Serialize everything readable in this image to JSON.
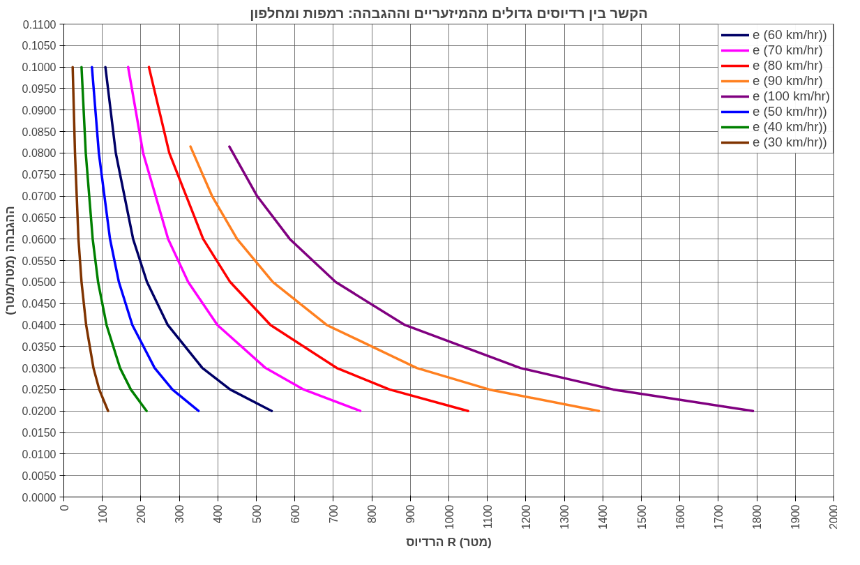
{
  "chart_data": {
    "type": "line",
    "title": "הקשר בין רדיוסים גדולים מהמיזעריים וההגבהה: רמפות ומחלפון",
    "xlabel": "הרדיוס R (מטר)",
    "ylabel": "ההגבהה (מטר/מטר)",
    "xlim": [
      0,
      2000
    ],
    "xticks": [
      0,
      100,
      200,
      300,
      400,
      500,
      600,
      700,
      800,
      900,
      1000,
      1100,
      1200,
      1300,
      1400,
      1500,
      1600,
      1700,
      1800,
      1900,
      2000
    ],
    "ylim": [
      0,
      0.11
    ],
    "yticks": [
      {
        "value": 0,
        "label": "0.0000"
      },
      {
        "value": 0.005,
        "label": "0.0050"
      },
      {
        "value": 0.01,
        "label": "0.0100"
      },
      {
        "value": 0.015,
        "label": "0.0150"
      },
      {
        "value": 0.02,
        "label": "0.0200"
      },
      {
        "value": 0.025,
        "label": "0.0250"
      },
      {
        "value": 0.03,
        "label": "0.0300"
      },
      {
        "value": 0.035,
        "label": "0.0350"
      },
      {
        "value": 0.04,
        "label": "0.0400"
      },
      {
        "value": 0.045,
        "label": "0.0450"
      },
      {
        "value": 0.05,
        "label": "0.0500"
      },
      {
        "value": 0.055,
        "label": "0.0550"
      },
      {
        "value": 0.06,
        "label": "0.0600"
      },
      {
        "value": 0.065,
        "label": "0.0650"
      },
      {
        "value": 0.07,
        "label": "0.0700"
      },
      {
        "value": 0.075,
        "label": "0.0750"
      },
      {
        "value": 0.08,
        "label": "0.0800"
      },
      {
        "value": 0.085,
        "label": "0.0850"
      },
      {
        "value": 0.09,
        "label": "0.0900"
      },
      {
        "value": 0.095,
        "label": "0.0950"
      },
      {
        "value": 0.1,
        "label": "0.1000"
      },
      {
        "value": 0.105,
        "label": "0.1050"
      },
      {
        "value": 0.11,
        "label": "0.1100"
      }
    ],
    "grid": true,
    "legend": "top right",
    "line_style": "solid",
    "series": [
      {
        "name": "e (60 km/hr))",
        "color": "#000066",
        "x": [
          108,
          135,
          180,
          216,
          270,
          360,
          432,
          540
        ],
        "values": [
          0.1,
          0.08,
          0.06,
          0.05,
          0.04,
          0.03,
          0.025,
          0.02
        ]
      },
      {
        "name": "e (70 km/hr)",
        "color": "#ff00ff",
        "x": [
          167,
          206,
          271,
          323,
          399,
          524,
          623,
          770
        ],
        "values": [
          0.1,
          0.08,
          0.06,
          0.05,
          0.04,
          0.03,
          0.025,
          0.02
        ]
      },
      {
        "name": "e (80 km/hr)",
        "color": "#ff0000",
        "x": [
          221,
          274,
          362,
          432,
          537,
          709,
          846,
          1050
        ],
        "values": [
          0.1,
          0.08,
          0.06,
          0.05,
          0.04,
          0.03,
          0.025,
          0.02
        ]
      },
      {
        "name": "e (90 km/hr)",
        "color": "#ff8020",
        "x": [
          329,
          385,
          450,
          543,
          683,
          917,
          1105,
          1390
        ],
        "values": [
          0.0815,
          0.07,
          0.06,
          0.05,
          0.04,
          0.03,
          0.025,
          0.02
        ]
      },
      {
        "name": "e (100 km/hr)",
        "color": "#800080",
        "x": [
          430,
          502,
          587,
          706,
          886,
          1186,
          1427,
          1790
        ],
        "values": [
          0.0815,
          0.07,
          0.06,
          0.05,
          0.04,
          0.03,
          0.025,
          0.02
        ]
      },
      {
        "name": "e (50 km/hr))",
        "color": "#0000ff",
        "x": [
          73,
          91,
          120,
          143,
          178,
          236,
          282,
          350
        ],
        "values": [
          0.1,
          0.08,
          0.06,
          0.05,
          0.04,
          0.03,
          0.025,
          0.02
        ]
      },
      {
        "name": "e (40 km/hr))",
        "color": "#008000",
        "x": [
          46,
          57,
          75,
          89,
          111,
          146,
          174,
          215
        ],
        "values": [
          0.1,
          0.08,
          0.06,
          0.05,
          0.04,
          0.03,
          0.025,
          0.02
        ]
      },
      {
        "name": "e (30 km/hr))",
        "color": "#7f3300",
        "x": [
          23,
          29,
          38,
          46,
          58,
          77,
          92,
          115
        ],
        "values": [
          0.1,
          0.08,
          0.06,
          0.05,
          0.04,
          0.03,
          0.025,
          0.02
        ]
      }
    ]
  }
}
